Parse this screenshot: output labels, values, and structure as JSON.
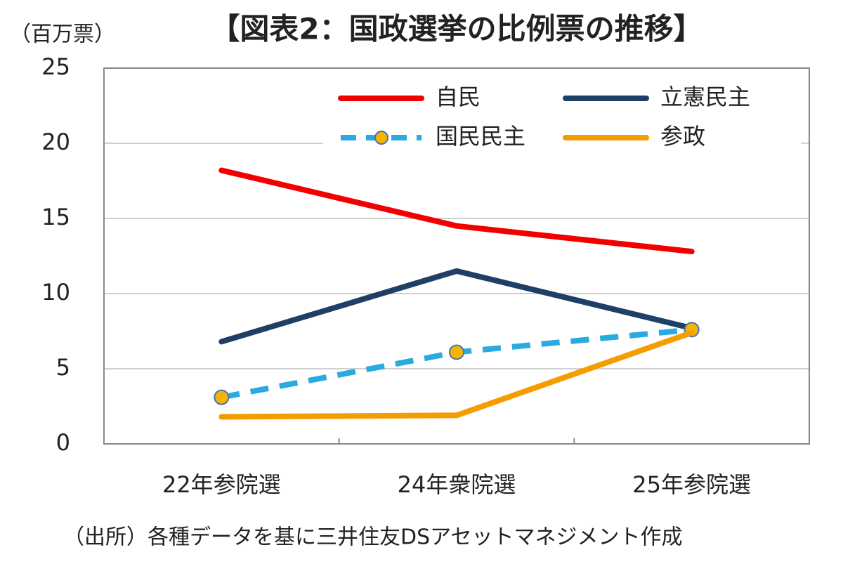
{
  "chart_data": {
    "type": "line",
    "title": "【図表2：国政選挙の比例票の推移】",
    "y_label": "（百万票）",
    "source": "（出所）各種データを基に三井住友DSアセットマネジメント作成",
    "categories": [
      "22年参院選",
      "24年衆院選",
      "25年参院選"
    ],
    "series": [
      {
        "name": "自民",
        "color": "#f20000",
        "values": [
          18.2,
          14.5,
          12.8
        ]
      },
      {
        "name": "立憲民主",
        "color": "#1f3f66",
        "values": [
          6.8,
          11.5,
          7.7
        ]
      },
      {
        "name": "国民民主",
        "color": "#29abe2",
        "linestyle": "dashed",
        "marker_color": "#f5b400",
        "values": [
          3.1,
          6.1,
          7.6
        ]
      },
      {
        "name": "参政",
        "color": "#f59c00",
        "values": [
          1.8,
          1.9,
          7.4
        ]
      }
    ],
    "ylim": [
      0,
      25
    ],
    "yticks": [
      0,
      5,
      10,
      15,
      20,
      25
    ],
    "grid": true,
    "legend": "upper right"
  }
}
